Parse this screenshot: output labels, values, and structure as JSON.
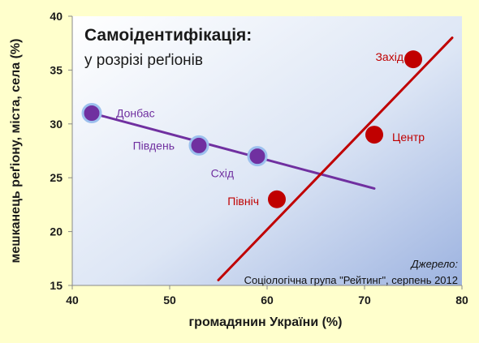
{
  "chart_data": {
    "type": "scatter",
    "title": "Самоідентифікація:",
    "subtitle": "у розрізі реґіонів",
    "xlabel": "громадянин України (%)",
    "ylabel": "мешканець реґіону, міста, села (%)",
    "xlim": [
      40,
      80
    ],
    "ylim": [
      15,
      40
    ],
    "x_ticks": [
      40,
      50,
      60,
      70,
      80
    ],
    "y_ticks": [
      15,
      20,
      25,
      30,
      35,
      40
    ],
    "grid": false,
    "source_label": "Джерело:",
    "source_text": "Соціологічна група \"Рейтинг\", серпень 2012",
    "series": [
      {
        "color": "#7030a0",
        "points": [
          {
            "label": "Донбас",
            "x": 42,
            "y": 31
          },
          {
            "label": "Південь",
            "x": 53,
            "y": 28
          },
          {
            "label": "Схід",
            "x": 59,
            "y": 27
          }
        ],
        "trendline": {
          "x": [
            42,
            71
          ],
          "y": [
            31,
            24
          ]
        }
      },
      {
        "color": "#c00000",
        "points": [
          {
            "label": "Захід",
            "x": 75,
            "y": 36
          },
          {
            "label": "Центр",
            "x": 71,
            "y": 29
          },
          {
            "label": "Північ",
            "x": 61,
            "y": 23
          }
        ],
        "trendline": {
          "x": [
            55,
            79
          ],
          "y": [
            15.5,
            38
          ]
        }
      }
    ]
  }
}
